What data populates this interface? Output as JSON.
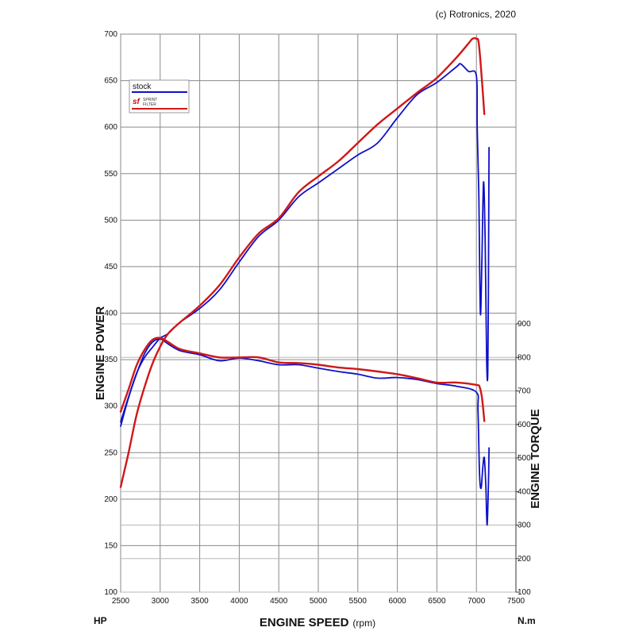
{
  "copyright": "(c) Rotronics, 2020",
  "chart_data": {
    "type": "line",
    "title": "",
    "xlabel": "ENGINE SPEED",
    "xlabel_unit": "(rpm)",
    "ylabel": "ENGINE POWER",
    "ylabel_unit": "HP",
    "y2label": "ENGINE TORQUE",
    "y2label_unit": "N.m",
    "xlim": [
      2500,
      7500
    ],
    "ylim": [
      100,
      700
    ],
    "y2lim": [
      100,
      900
    ],
    "x_ticks": [
      "2500",
      "3000",
      "3500",
      "4000",
      "4500",
      "5000",
      "5500",
      "6000",
      "6500",
      "7000",
      "7500"
    ],
    "y_ticks": [
      "100",
      "150",
      "200",
      "250",
      "300",
      "350",
      "400",
      "450",
      "500",
      "550",
      "600",
      "650",
      "700"
    ],
    "y2_ticks": [
      "100",
      "200",
      "300",
      "400",
      "500",
      "600",
      "700",
      "800",
      "900"
    ],
    "grid": true,
    "legend": {
      "position": "top-left",
      "entries": [
        {
          "label": "stock",
          "color": "#1010c8"
        },
        {
          "label": "",
          "logo": "SF Sprint Filter",
          "color": "#d01818"
        }
      ]
    },
    "series": [
      {
        "name": "stock",
        "metric": "power",
        "color": "#1010c8",
        "points": [
          [
            2500,
            283
          ],
          [
            2600,
            310
          ],
          [
            2700,
            335
          ],
          [
            2800,
            352
          ],
          [
            2900,
            363
          ],
          [
            3000,
            373
          ],
          [
            3100,
            378
          ],
          [
            3250,
            390
          ],
          [
            3500,
            405
          ],
          [
            3750,
            425
          ],
          [
            4000,
            455
          ],
          [
            4250,
            483
          ],
          [
            4500,
            500
          ],
          [
            4750,
            525
          ],
          [
            5000,
            540
          ],
          [
            5250,
            555
          ],
          [
            5500,
            570
          ],
          [
            5750,
            583
          ],
          [
            6000,
            610
          ],
          [
            6250,
            635
          ],
          [
            6500,
            648
          ],
          [
            6750,
            665
          ],
          [
            6800,
            668
          ],
          [
            6900,
            660
          ],
          [
            7000,
            655
          ],
          [
            7010,
            600
          ],
          [
            7030,
            530
          ],
          [
            7050,
            400
          ],
          [
            7070,
            460
          ],
          [
            7090,
            541
          ],
          [
            7110,
            480
          ],
          [
            7130,
            350
          ],
          [
            7145,
            340
          ],
          [
            7155,
            480
          ],
          [
            7160,
            578
          ]
        ]
      },
      {
        "name": "",
        "metric": "power",
        "color": "#d01818",
        "points": [
          [
            2500,
            213
          ],
          [
            2600,
            250
          ],
          [
            2700,
            290
          ],
          [
            2800,
            320
          ],
          [
            2900,
            345
          ],
          [
            3000,
            364
          ],
          [
            3100,
            378
          ],
          [
            3250,
            390
          ],
          [
            3500,
            408
          ],
          [
            3750,
            430
          ],
          [
            4000,
            460
          ],
          [
            4250,
            486
          ],
          [
            4500,
            502
          ],
          [
            4750,
            530
          ],
          [
            5000,
            547
          ],
          [
            5250,
            563
          ],
          [
            5500,
            583
          ],
          [
            5750,
            603
          ],
          [
            6000,
            620
          ],
          [
            6250,
            637
          ],
          [
            6500,
            653
          ],
          [
            6750,
            675
          ],
          [
            6900,
            690
          ],
          [
            6950,
            695
          ],
          [
            7000,
            695
          ],
          [
            7030,
            690
          ],
          [
            7070,
            650
          ],
          [
            7100,
            614
          ]
        ]
      },
      {
        "name": "stock",
        "metric": "torque",
        "color": "#1010c8",
        "points": [
          [
            2500,
            595
          ],
          [
            2600,
            680
          ],
          [
            2700,
            750
          ],
          [
            2800,
            810
          ],
          [
            2900,
            845
          ],
          [
            3000,
            855
          ],
          [
            3100,
            840
          ],
          [
            3250,
            820
          ],
          [
            3500,
            808
          ],
          [
            3750,
            790
          ],
          [
            4000,
            798
          ],
          [
            4250,
            790
          ],
          [
            4500,
            778
          ],
          [
            4750,
            778
          ],
          [
            5000,
            768
          ],
          [
            5250,
            758
          ],
          [
            5500,
            750
          ],
          [
            5750,
            738
          ],
          [
            6000,
            740
          ],
          [
            6250,
            734
          ],
          [
            6500,
            722
          ],
          [
            6750,
            714
          ],
          [
            7000,
            696
          ],
          [
            7020,
            640
          ],
          [
            7040,
            450
          ],
          [
            7060,
            410
          ],
          [
            7080,
            470
          ],
          [
            7100,
            500
          ],
          [
            7120,
            410
          ],
          [
            7135,
            300
          ],
          [
            7150,
            400
          ],
          [
            7160,
            530
          ]
        ]
      },
      {
        "name": "",
        "metric": "torque",
        "color": "#d01818",
        "points": [
          [
            2500,
            638
          ],
          [
            2600,
            705
          ],
          [
            2700,
            775
          ],
          [
            2800,
            822
          ],
          [
            2900,
            852
          ],
          [
            3000,
            858
          ],
          [
            3100,
            846
          ],
          [
            3250,
            825
          ],
          [
            3500,
            812
          ],
          [
            3750,
            800
          ],
          [
            4000,
            800
          ],
          [
            4250,
            800
          ],
          [
            4500,
            785
          ],
          [
            4750,
            783
          ],
          [
            5000,
            778
          ],
          [
            5250,
            770
          ],
          [
            5500,
            765
          ],
          [
            5750,
            758
          ],
          [
            6000,
            750
          ],
          [
            6250,
            738
          ],
          [
            6500,
            725
          ],
          [
            6750,
            725
          ],
          [
            7000,
            718
          ],
          [
            7040,
            712
          ],
          [
            7070,
            680
          ],
          [
            7100,
            610
          ]
        ]
      }
    ]
  }
}
